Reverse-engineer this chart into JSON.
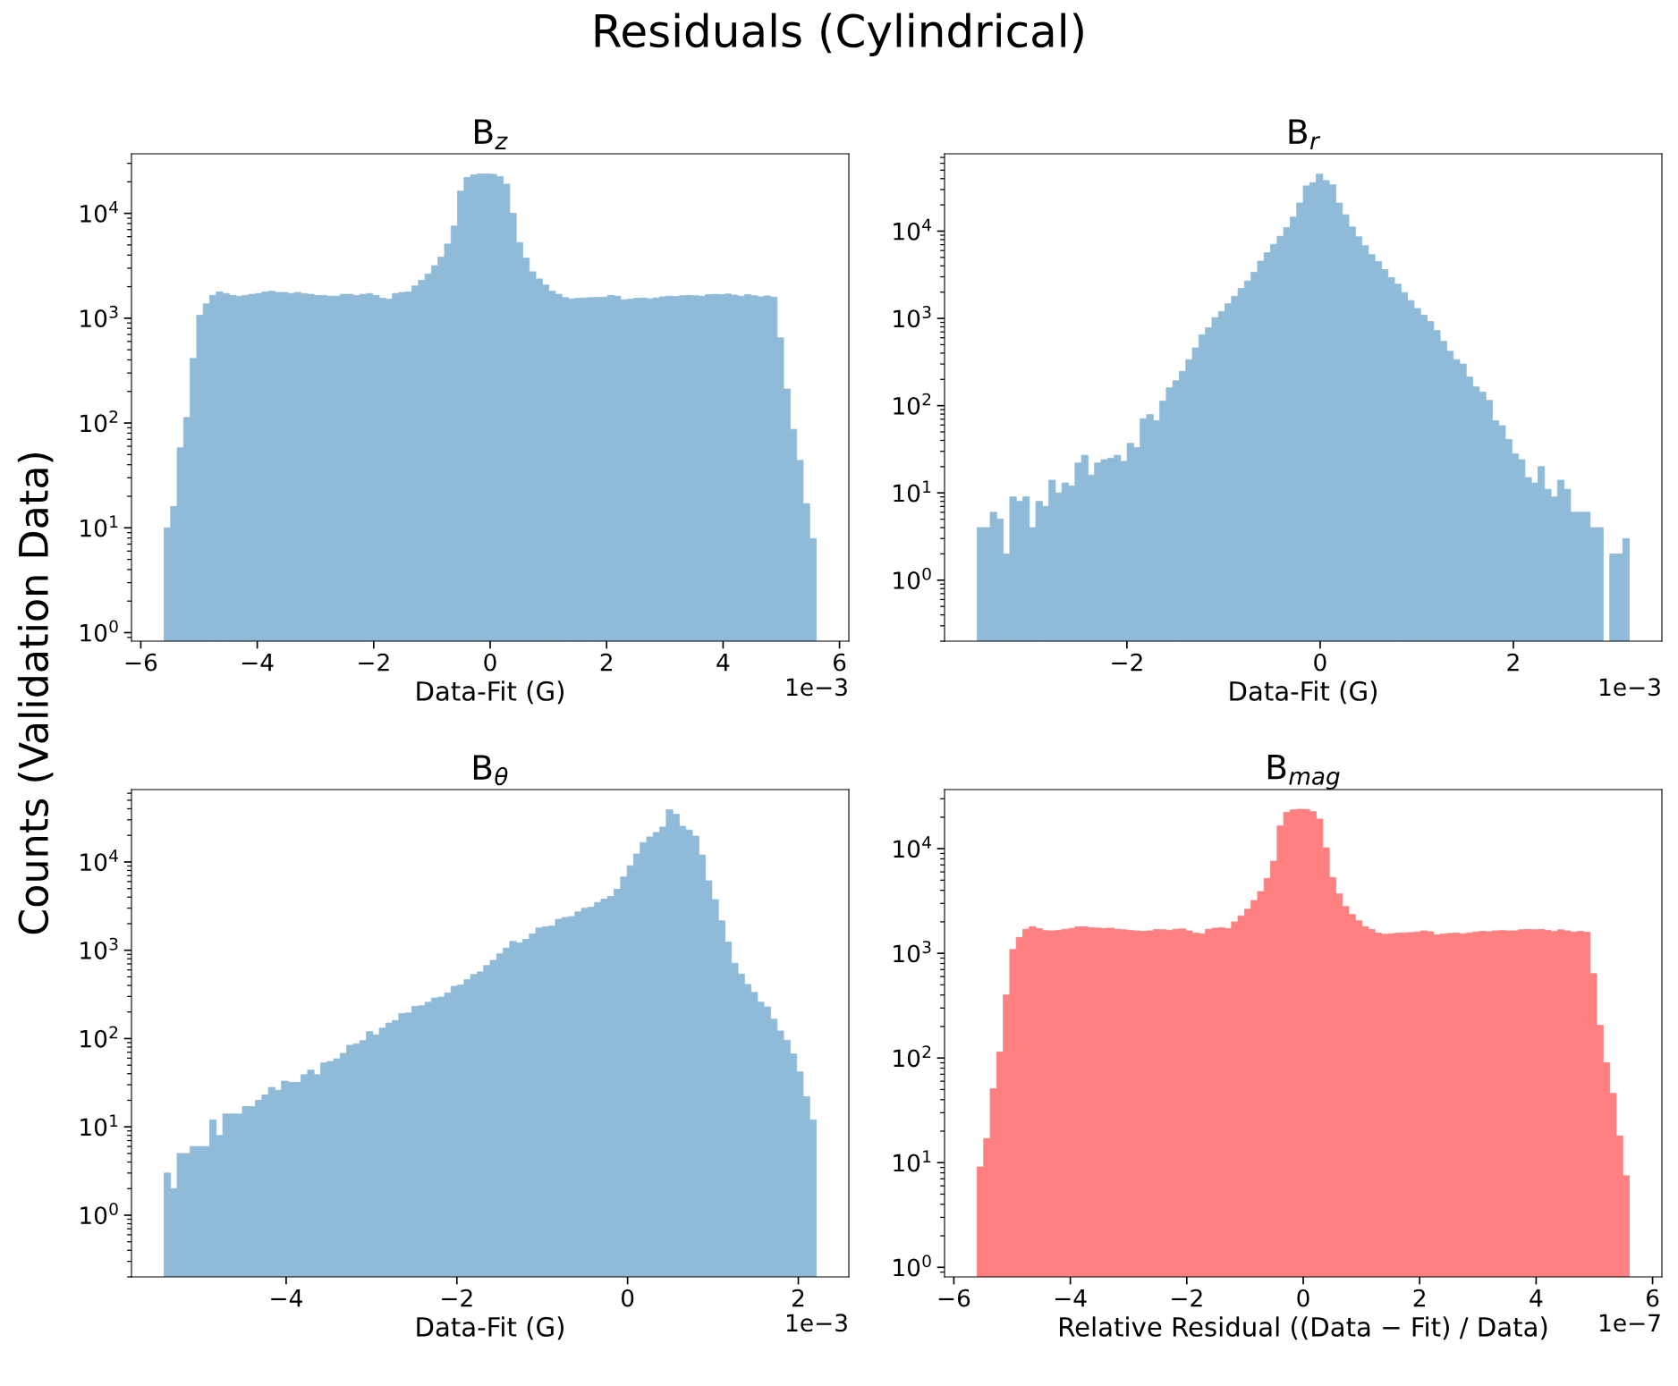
{
  "chart_data": [
    {
      "type": "histogram",
      "title": "B$_{z}$",
      "xlabel": "Data-Fit (G)",
      "ylabel": "Counts (Validation Data)",
      "annotations": [
        "Residuals (Cylindrical)",
        "1e−3"
      ],
      "color": "#8fbbd9",
      "log": "y",
      "grid": false,
      "bins": [
        -5.6,
        -5.488,
        -5.376,
        -5.264,
        -5.152,
        -5.04,
        -4.928,
        -4.816,
        -4.704,
        -4.592,
        -4.48,
        -4.368,
        -4.256,
        -4.144,
        -4.032,
        -3.92,
        -3.808,
        -3.696,
        -3.584,
        -3.472,
        -3.36,
        -3.248,
        -3.136,
        -3.024,
        -2.912,
        -2.8,
        -2.688,
        -2.576,
        -2.464,
        -2.352,
        -2.24,
        -2.128,
        -2.016,
        -1.904,
        -1.792,
        -1.68,
        -1.568,
        -1.456,
        -1.344,
        -1.232,
        -1.12,
        -1.008,
        -0.896,
        -0.784,
        -0.672,
        -0.56,
        -0.448,
        -0.336,
        -0.224,
        -0.112,
        0,
        0.112,
        0.224,
        0.336,
        0.448,
        0.56,
        0.672,
        0.784,
        0.896,
        1.008,
        1.12,
        1.232,
        1.344,
        1.456,
        1.568,
        1.68,
        1.792,
        1.904,
        2.016,
        2.128,
        2.24,
        2.352,
        2.464,
        2.576,
        2.688,
        2.8,
        2.912,
        3.024,
        3.136,
        3.248,
        3.36,
        3.472,
        3.584,
        3.696,
        3.808,
        3.92,
        4.032,
        4.144,
        4.256,
        4.368,
        4.48,
        4.592,
        4.704,
        4.816,
        4.928,
        5.04,
        5.152,
        5.264,
        5.376,
        5.488,
        5.6
      ],
      "values": [
        10,
        16,
        58,
        113,
        413,
        1070,
        1370,
        1650,
        1780,
        1720,
        1650,
        1620,
        1650,
        1690,
        1720,
        1780,
        1810,
        1760,
        1760,
        1720,
        1760,
        1720,
        1690,
        1650,
        1650,
        1620,
        1620,
        1690,
        1690,
        1650,
        1690,
        1720,
        1650,
        1550,
        1520,
        1720,
        1760,
        1780,
        2030,
        2300,
        2640,
        3170,
        3820,
        5100,
        7560,
        16300,
        22000,
        23300,
        23800,
        23800,
        23600,
        22400,
        19000,
        10000,
        5270,
        3740,
        2770,
        2370,
        2070,
        1810,
        1690,
        1570,
        1530,
        1550,
        1560,
        1570,
        1580,
        1590,
        1650,
        1620,
        1500,
        1520,
        1550,
        1560,
        1530,
        1560,
        1600,
        1620,
        1610,
        1640,
        1650,
        1640,
        1620,
        1680,
        1690,
        1680,
        1700,
        1660,
        1620,
        1680,
        1640,
        1600,
        1630,
        1590,
        650,
        211,
        87,
        44,
        17,
        7.9
      ],
      "xlim": [
        -6.16,
        6.16
      ],
      "xticks": [
        {
          "value": -6,
          "label": "−6"
        },
        {
          "value": -4,
          "label": "−4"
        },
        {
          "value": -2,
          "label": "−2"
        },
        0,
        2,
        4,
        6
      ],
      "ylim": [
        0.83,
        37000
      ],
      "yticks": [
        {
          "value": 1,
          "label": "10$^{0}$"
        },
        {
          "value": 10,
          "label": "10$^{1}$"
        },
        {
          "value": 100,
          "label": "10$^{2}$"
        },
        {
          "value": 1000,
          "label": "10$^{3}$"
        },
        {
          "value": 10000,
          "label": "10$^{4}$"
        }
      ]
    },
    {
      "type": "histogram",
      "title": "B$_{r}$",
      "xlabel": "Data-Fit (G)",
      "annotations": [
        "1e−3"
      ],
      "color": "#8fbbd9",
      "log": "y",
      "grid": false,
      "bins": [
        -3.55,
        -3.4825,
        -3.415,
        -3.3475,
        -3.28,
        -3.2125,
        -3.145,
        -3.0775,
        -3.01,
        -2.9425,
        -2.875,
        -2.8075,
        -2.74,
        -2.6725,
        -2.605,
        -2.5375,
        -2.47,
        -2.4025,
        -2.335,
        -2.2675,
        -2.2,
        -2.1325,
        -2.065,
        -1.9975,
        -1.93,
        -1.8625,
        -1.795,
        -1.7275,
        -1.66,
        -1.5925,
        -1.525,
        -1.4575,
        -1.39,
        -1.3225,
        -1.255,
        -1.1875,
        -1.12,
        -1.0525,
        -0.985,
        -0.9175,
        -0.85,
        -0.7825,
        -0.715,
        -0.6475,
        -0.58,
        -0.5125,
        -0.445,
        -0.3775,
        -0.31,
        -0.2425,
        -0.175,
        -0.1075,
        -0.04,
        0.0275,
        0.095,
        0.1625,
        0.23,
        0.2975,
        0.365,
        0.4325,
        0.5,
        0.5675,
        0.635,
        0.7025,
        0.77,
        0.8375,
        0.905,
        0.9725,
        1.04,
        1.1075,
        1.175,
        1.2425,
        1.31,
        1.3775,
        1.445,
        1.5125,
        1.58,
        1.6475,
        1.715,
        1.7825,
        1.85,
        1.9175,
        1.985,
        2.0525,
        2.12,
        2.1875,
        2.255,
        2.3225,
        2.39,
        2.4575,
        2.525,
        2.5925,
        2.66,
        2.7275,
        2.795,
        2.8625,
        2.93,
        2.9975,
        3.065,
        3.1325,
        3.2
      ],
      "values": [
        4,
        4,
        6,
        5,
        2,
        9,
        8,
        9,
        4,
        8,
        7,
        14,
        10,
        13,
        12,
        22,
        27,
        16,
        22,
        24,
        25,
        27,
        23,
        37,
        33,
        71,
        79,
        67,
        113,
        160,
        193,
        247,
        337,
        459,
        649,
        780,
        1020,
        1200,
        1470,
        1790,
        2210,
        2690,
        3370,
        4530,
        5660,
        7070,
        8720,
        11000,
        14500,
        21000,
        33000,
        36000,
        45000,
        38000,
        34000,
        21000,
        15400,
        11200,
        8620,
        6810,
        5390,
        4480,
        3620,
        2940,
        2470,
        1980,
        1600,
        1300,
        1090,
        920,
        730,
        546,
        420,
        337,
        300,
        213,
        164,
        143,
        115,
        67,
        59,
        41,
        28,
        24,
        15,
        13,
        20,
        11,
        9,
        14,
        11,
        6,
        6,
        6,
        4,
        4,
        null,
        2,
        2,
        3
      ],
      "xlim": [
        -3.8875,
        3.5375
      ],
      "xticks": [
        {
          "value": -2,
          "label": "−2"
        },
        0,
        2
      ],
      "ylim": [
        0.2,
        77000
      ],
      "yticks": [
        {
          "value": 1,
          "label": "10$^{0}$"
        },
        {
          "value": 10,
          "label": "10$^{1}$"
        },
        {
          "value": 100,
          "label": "10$^{2}$"
        },
        {
          "value": 1000,
          "label": "10$^{3}$"
        },
        {
          "value": 10000,
          "label": "10$^{4}$"
        }
      ]
    },
    {
      "type": "histogram",
      "title": "B$_{θ}$",
      "xlabel": "Data-Fit (G)",
      "annotations": [
        "1e−3"
      ],
      "color": "#8fbbd9",
      "log": "y",
      "grid": false,
      "bins": [
        -5.43,
        -5.3536,
        -5.2772,
        -5.2008,
        -5.1244,
        -5.048,
        -4.9716,
        -4.8952,
        -4.8188,
        -4.7424,
        -4.666,
        -4.5896,
        -4.5132,
        -4.4368,
        -4.3604,
        -4.284,
        -4.2076,
        -4.1312,
        -4.0548,
        -3.9784,
        -3.902,
        -3.8256,
        -3.7492,
        -3.6728,
        -3.5964,
        -3.52,
        -3.4436,
        -3.3672,
        -3.2908,
        -3.2144,
        -3.138,
        -3.0616,
        -2.9852,
        -2.9088,
        -2.8324,
        -2.756,
        -2.6796,
        -2.6032,
        -2.5268,
        -2.4504,
        -2.374,
        -2.2976,
        -2.2212,
        -2.1448,
        -2.0684,
        -1.992,
        -1.9156,
        -1.8392,
        -1.7628,
        -1.6864,
        -1.61,
        -1.5336,
        -1.4572,
        -1.3808,
        -1.3044,
        -1.228,
        -1.1516,
        -1.0752,
        -0.9988,
        -0.9224,
        -0.846,
        -0.7696,
        -0.6932,
        -0.6168,
        -0.5404,
        -0.464,
        -0.3876,
        -0.3112,
        -0.2348,
        -0.1584,
        -0.082,
        -0.0056,
        0.0708,
        0.1472,
        0.2236,
        0.3,
        0.3764,
        0.4528,
        0.5292,
        0.6056,
        0.682,
        0.7584,
        0.8348,
        0.9112,
        0.9876,
        1.064,
        1.1404,
        1.2168,
        1.2932,
        1.3696,
        1.446,
        1.5224,
        1.5988,
        1.6752,
        1.7516,
        1.828,
        1.9044,
        1.9808,
        2.0572,
        2.1336,
        2.21
      ],
      "values": [
        3,
        2,
        5,
        5,
        6,
        6,
        6,
        12,
        8,
        14,
        14,
        14,
        17,
        17,
        20,
        23,
        28,
        26,
        33,
        32,
        32,
        39,
        44,
        39,
        53,
        55,
        59,
        68,
        84,
        87,
        95,
        120,
        110,
        131,
        150,
        160,
        192,
        195,
        231,
        235,
        258,
        288,
        295,
        329,
        391,
        405,
        464,
        531,
        569,
        671,
        768,
        912,
        1060,
        1260,
        1210,
        1330,
        1530,
        1790,
        1840,
        1880,
        2240,
        2350,
        2410,
        2720,
        2990,
        3080,
        3480,
        3790,
        4080,
        4910,
        6750,
        9060,
        12300,
        16600,
        19200,
        21600,
        24800,
        39100,
        34600,
        25400,
        23000,
        19600,
        12000,
        6120,
        3740,
        2160,
        1240,
        713,
        538,
        410,
        333,
        258,
        228,
        166,
        122,
        96,
        67,
        42,
        22,
        12
      ],
      "xlim": [
        -5.812,
        2.592
      ],
      "xticks": [
        {
          "value": -4,
          "label": "−4"
        },
        {
          "value": -2,
          "label": "−2"
        },
        0,
        2
      ],
      "ylim": [
        0.2,
        66000
      ],
      "yticks": [
        {
          "value": 1,
          "label": "10$^{0}$"
        },
        {
          "value": 10,
          "label": "10$^{1}$"
        },
        {
          "value": 100,
          "label": "10$^{2}$"
        },
        {
          "value": 1000,
          "label": "10$^{3}$"
        },
        {
          "value": 10000,
          "label": "10$^{4}$"
        }
      ]
    },
    {
      "type": "histogram",
      "title": "B$_{mag}$",
      "xlabel": "Relative Residual ((Data − Fit) / Data)",
      "annotations": [
        "1e−7"
      ],
      "color": "#ff8080",
      "log": "y",
      "grid": false,
      "bins": [
        -5.6,
        -5.488,
        -5.376,
        -5.264,
        -5.152,
        -5.04,
        -4.928,
        -4.816,
        -4.704,
        -4.592,
        -4.48,
        -4.368,
        -4.256,
        -4.144,
        -4.032,
        -3.92,
        -3.808,
        -3.696,
        -3.584,
        -3.472,
        -3.36,
        -3.248,
        -3.136,
        -3.024,
        -2.912,
        -2.8,
        -2.688,
        -2.576,
        -2.464,
        -2.352,
        -2.24,
        -2.128,
        -2.016,
        -1.904,
        -1.792,
        -1.68,
        -1.568,
        -1.456,
        -1.344,
        -1.232,
        -1.12,
        -1.008,
        -0.896,
        -0.784,
        -0.672,
        -0.56,
        -0.448,
        -0.336,
        -0.224,
        -0.112,
        0,
        0.112,
        0.224,
        0.336,
        0.448,
        0.56,
        0.672,
        0.784,
        0.896,
        1.008,
        1.12,
        1.232,
        1.344,
        1.456,
        1.568,
        1.68,
        1.792,
        1.904,
        2.016,
        2.128,
        2.24,
        2.352,
        2.464,
        2.576,
        2.688,
        2.8,
        2.912,
        3.024,
        3.136,
        3.248,
        3.36,
        3.472,
        3.584,
        3.696,
        3.808,
        3.92,
        4.032,
        4.144,
        4.256,
        4.368,
        4.48,
        4.592,
        4.704,
        4.816,
        4.928,
        5.04,
        5.152,
        5.264,
        5.376,
        5.488,
        5.6
      ],
      "values": [
        9.1,
        17,
        51,
        114,
        400,
        1090,
        1420,
        1700,
        1800,
        1720,
        1650,
        1640,
        1660,
        1700,
        1730,
        1790,
        1790,
        1760,
        1750,
        1730,
        1740,
        1700,
        1680,
        1660,
        1640,
        1620,
        1640,
        1690,
        1680,
        1660,
        1700,
        1710,
        1640,
        1560,
        1540,
        1700,
        1740,
        1760,
        1720,
        2000,
        2280,
        2640,
        3200,
        3900,
        5200,
        7600,
        16500,
        22200,
        23500,
        23800,
        23700,
        22600,
        19200,
        10200,
        5300,
        3700,
        2800,
        2350,
        2050,
        1800,
        1690,
        1560,
        1520,
        1540,
        1560,
        1570,
        1580,
        1600,
        1640,
        1610,
        1500,
        1530,
        1550,
        1560,
        1540,
        1570,
        1600,
        1620,
        1610,
        1640,
        1650,
        1640,
        1640,
        1680,
        1690,
        1680,
        1690,
        1660,
        1620,
        1680,
        1640,
        1600,
        1620,
        1590,
        640,
        205,
        90,
        46,
        18,
        7.5
      ],
      "xlim": [
        -6.16,
        6.16
      ],
      "xticks": [
        {
          "value": -6,
          "label": "−6"
        },
        {
          "value": -4,
          "label": "−4"
        },
        {
          "value": -2,
          "label": "−2"
        },
        0,
        2,
        4,
        6
      ],
      "ylim": [
        0.81,
        36700
      ],
      "yticks": [
        {
          "value": 1,
          "label": "10$^{0}$"
        },
        {
          "value": 10,
          "label": "10$^{1}$"
        },
        {
          "value": 100,
          "label": "10$^{2}$"
        },
        {
          "value": 1000,
          "label": "10$^{3}$"
        },
        {
          "value": 10000,
          "label": "10$^{4}$"
        }
      ]
    }
  ]
}
